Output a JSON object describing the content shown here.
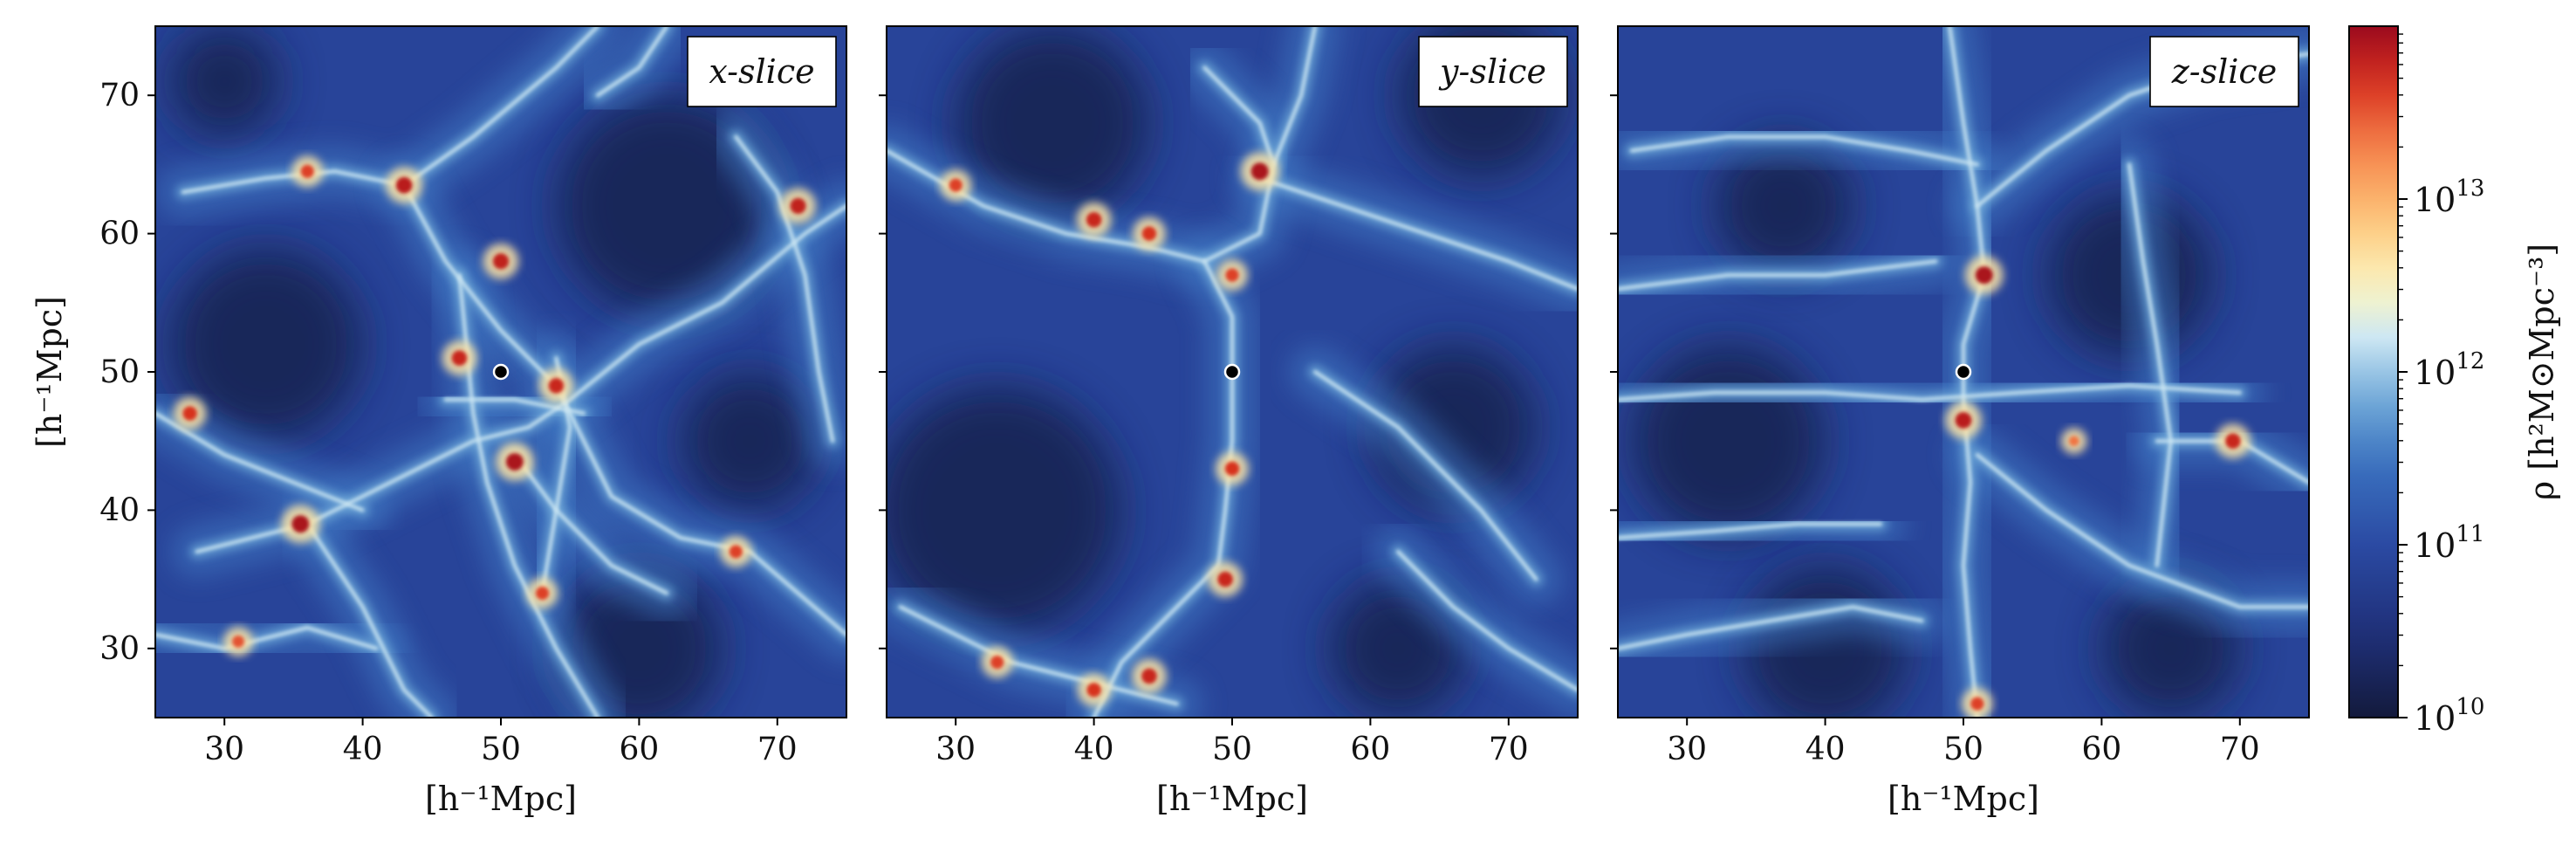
{
  "chart_data": {
    "type": "heatmap",
    "panels": [
      {
        "title": "x-slice",
        "xlabel": "[h⁻¹Mpc]",
        "ylabel": "[h⁻¹Mpc]",
        "xlim": [
          25,
          75
        ],
        "ylim": [
          25,
          75
        ],
        "xticks": [
          "30",
          "40",
          "50",
          "60",
          "70"
        ],
        "yticks": [
          "30",
          "40",
          "50",
          "60",
          "70"
        ],
        "marker": {
          "x": 50,
          "y": 50
        },
        "filaments": [
          [
            [
              27,
              63
            ],
            [
              33,
              64
            ],
            [
              38,
              64.5
            ],
            [
              43,
              63.5
            ],
            [
              48,
              67
            ],
            [
              54,
              72
            ],
            [
              57,
              75
            ]
          ],
          [
            [
              43,
              63.5
            ],
            [
              46,
              58
            ],
            [
              50,
              53
            ],
            [
              54,
              49
            ],
            [
              58,
              41
            ],
            [
              63,
              38
            ],
            [
              68,
              37
            ],
            [
              75,
              31
            ]
          ],
          [
            [
              25,
              31
            ],
            [
              30,
              30
            ],
            [
              36,
              31.5
            ],
            [
              41,
              30
            ]
          ],
          [
            [
              28,
              37
            ],
            [
              32,
              38
            ],
            [
              36,
              39
            ],
            [
              42,
              42
            ],
            [
              48,
              45
            ],
            [
              52,
              46
            ],
            [
              55,
              48
            ],
            [
              60,
              52
            ],
            [
              66,
              55
            ],
            [
              72,
              60
            ],
            [
              75,
              62
            ]
          ],
          [
            [
              36,
              39
            ],
            [
              40,
              33
            ],
            [
              43,
              27
            ],
            [
              45,
              25
            ]
          ],
          [
            [
              47,
              57
            ],
            [
              47.5,
              52
            ],
            [
              48,
              47
            ],
            [
              49,
              42
            ],
            [
              51,
              36
            ],
            [
              54,
              30
            ],
            [
              57,
              25
            ]
          ],
          [
            [
              54,
              51
            ],
            [
              55,
              46
            ],
            [
              54,
              40
            ],
            [
              53,
              34
            ]
          ],
          [
            [
              46,
              48
            ],
            [
              51,
              48
            ],
            [
              56,
              47
            ]
          ],
          [
            [
              51,
              44
            ],
            [
              54,
              40
            ],
            [
              58,
              36
            ],
            [
              62,
              34
            ]
          ],
          [
            [
              67,
              67
            ],
            [
              70,
              63
            ],
            [
              72,
              57
            ],
            [
              73,
              50
            ],
            [
              74,
              45
            ]
          ],
          [
            [
              57,
              70
            ],
            [
              60,
              72
            ],
            [
              62,
              75
            ]
          ],
          [
            [
              25,
              47
            ],
            [
              30,
              44
            ],
            [
              35,
              42
            ],
            [
              40,
              40
            ]
          ]
        ],
        "hotspots": [
          {
            "x": 35.5,
            "y": 39,
            "v": 1.0
          },
          {
            "x": 51,
            "y": 43.5,
            "v": 1.0
          },
          {
            "x": 43,
            "y": 63.5,
            "v": 0.9
          },
          {
            "x": 50,
            "y": 58,
            "v": 0.85
          },
          {
            "x": 47,
            "y": 51,
            "v": 0.8
          },
          {
            "x": 54,
            "y": 49,
            "v": 0.8
          },
          {
            "x": 71.5,
            "y": 62,
            "v": 0.85
          },
          {
            "x": 36,
            "y": 64.5,
            "v": 0.6
          },
          {
            "x": 27.5,
            "y": 47,
            "v": 0.7
          },
          {
            "x": 53,
            "y": 34,
            "v": 0.6
          },
          {
            "x": 67,
            "y": 37,
            "v": 0.6
          },
          {
            "x": 31,
            "y": 30.5,
            "v": 0.5
          }
        ],
        "voids": [
          {
            "x": 33,
            "y": 52,
            "r": 7
          },
          {
            "x": 62,
            "y": 62,
            "r": 8
          },
          {
            "x": 60,
            "y": 30,
            "r": 6
          },
          {
            "x": 68,
            "y": 45,
            "r": 5
          },
          {
            "x": 30,
            "y": 71,
            "r": 4
          }
        ]
      },
      {
        "title": "y-slice",
        "xlabel": "[h⁻¹Mpc]",
        "ylabel": "",
        "xlim": [
          25,
          75
        ],
        "ylim": [
          25,
          75
        ],
        "xticks": [
          "30",
          "40",
          "50",
          "60",
          "70"
        ],
        "yticks": [],
        "marker": {
          "x": 50,
          "y": 50
        },
        "filaments": [
          [
            [
              25,
              66
            ],
            [
              32,
              62
            ],
            [
              38,
              60
            ],
            [
              44,
              59
            ],
            [
              48,
              58
            ],
            [
              52,
              60
            ],
            [
              53,
              65
            ],
            [
              55,
              70
            ],
            [
              56,
              75
            ]
          ],
          [
            [
              48,
              58
            ],
            [
              50,
              54
            ],
            [
              50,
              50
            ],
            [
              50,
              45
            ],
            [
              49.5,
              40
            ],
            [
              49,
              36
            ],
            [
              46,
              33
            ],
            [
              42,
              29
            ],
            [
              40,
              25
            ]
          ],
          [
            [
              53,
              65
            ],
            [
              52,
              68
            ],
            [
              50,
              70
            ],
            [
              48,
              72
            ]
          ],
          [
            [
              26,
              33
            ],
            [
              30,
              31
            ],
            [
              34,
              29
            ],
            [
              38,
              28
            ],
            [
              42,
              27
            ],
            [
              46,
              26
            ]
          ],
          [
            [
              52,
              64
            ],
            [
              58,
              62
            ],
            [
              64,
              60
            ],
            [
              70,
              58
            ],
            [
              75,
              56
            ]
          ],
          [
            [
              56,
              50
            ],
            [
              62,
              46
            ],
            [
              68,
              40
            ],
            [
              72,
              35
            ]
          ],
          [
            [
              62,
              37
            ],
            [
              66,
              33
            ],
            [
              70,
              30
            ],
            [
              75,
              27
            ]
          ]
        ],
        "hotspots": [
          {
            "x": 52,
            "y": 64.5,
            "v": 1.0
          },
          {
            "x": 40,
            "y": 61,
            "v": 0.8
          },
          {
            "x": 44,
            "y": 60,
            "v": 0.7
          },
          {
            "x": 30,
            "y": 63.5,
            "v": 0.6
          },
          {
            "x": 50,
            "y": 43,
            "v": 0.7
          },
          {
            "x": 49.5,
            "y": 35,
            "v": 0.8
          },
          {
            "x": 44,
            "y": 28,
            "v": 0.8
          },
          {
            "x": 40,
            "y": 27,
            "v": 0.7
          },
          {
            "x": 33,
            "y": 29,
            "v": 0.6
          },
          {
            "x": 50,
            "y": 57,
            "v": 0.6
          }
        ],
        "voids": [
          {
            "x": 37,
            "y": 68,
            "r": 7
          },
          {
            "x": 33,
            "y": 40,
            "r": 9
          },
          {
            "x": 66,
            "y": 46,
            "r": 6
          },
          {
            "x": 62,
            "y": 30,
            "r": 5
          },
          {
            "x": 68,
            "y": 70,
            "r": 6
          }
        ]
      },
      {
        "title": "z-slice",
        "xlabel": "[h⁻¹Mpc]",
        "ylabel": "",
        "xlim": [
          25,
          75
        ],
        "ylim": [
          25,
          75
        ],
        "xticks": [
          "30",
          "40",
          "50",
          "60",
          "70"
        ],
        "yticks": [],
        "marker": {
          "x": 50,
          "y": 50
        },
        "filaments": [
          [
            [
              49,
              75
            ],
            [
              50,
              68
            ],
            [
              51,
              62
            ],
            [
              51.5,
              57
            ],
            [
              50,
              52
            ],
            [
              50,
              48
            ],
            [
              50.5,
              42
            ],
            [
              50,
              36
            ],
            [
              50.5,
              30
            ],
            [
              51,
              25
            ]
          ],
          [
            [
              25,
              48
            ],
            [
              32,
              48.5
            ],
            [
              40,
              48.5
            ],
            [
              47,
              48
            ],
            [
              54,
              48.5
            ],
            [
              62,
              49
            ],
            [
              70,
              48.5
            ]
          ],
          [
            [
              51,
              62
            ],
            [
              56,
              66
            ],
            [
              62,
              70
            ],
            [
              68,
              72
            ],
            [
              75,
              73
            ]
          ],
          [
            [
              26,
              66
            ],
            [
              33,
              67
            ],
            [
              40,
              67
            ],
            [
              46,
              66
            ],
            [
              51,
              65
            ]
          ],
          [
            [
              51,
              44
            ],
            [
              56,
              40
            ],
            [
              62,
              36
            ],
            [
              70,
              33
            ],
            [
              75,
              33
            ]
          ],
          [
            [
              25,
              38
            ],
            [
              32,
              38.5
            ],
            [
              38,
              39
            ],
            [
              44,
              39
            ]
          ],
          [
            [
              62,
              65
            ],
            [
              63,
              58
            ],
            [
              64,
              52
            ],
            [
              65,
              45
            ],
            [
              64,
              36
            ]
          ],
          [
            [
              64,
              45
            ],
            [
              67,
              45
            ],
            [
              70,
              45
            ],
            [
              75,
              42
            ]
          ],
          [
            [
              25,
              56
            ],
            [
              33,
              57
            ],
            [
              40,
              57
            ],
            [
              48,
              58
            ]
          ],
          [
            [
              25,
              30
            ],
            [
              30,
              31
            ],
            [
              36,
              32
            ],
            [
              42,
              33
            ],
            [
              47,
              32
            ]
          ]
        ],
        "hotspots": [
          {
            "x": 51.5,
            "y": 57,
            "v": 1.0
          },
          {
            "x": 50,
            "y": 46.5,
            "v": 0.9
          },
          {
            "x": 69.5,
            "y": 45,
            "v": 0.8
          },
          {
            "x": 51,
            "y": 26,
            "v": 0.6
          },
          {
            "x": 58,
            "y": 45,
            "v": 0.3
          }
        ],
        "voids": [
          {
            "x": 33,
            "y": 45,
            "r": 7
          },
          {
            "x": 62,
            "y": 57,
            "r": 6
          },
          {
            "x": 40,
            "y": 30,
            "r": 6
          },
          {
            "x": 65,
            "y": 30,
            "r": 5
          },
          {
            "x": 37,
            "y": 62,
            "r": 5
          }
        ]
      }
    ],
    "colorbar": {
      "label": "ρ  [h²M⊙Mpc⁻³]",
      "scale": "log",
      "range": [
        10000000000.0,
        100000000000000.0
      ],
      "colormap": "RdYlBu_r",
      "ticks": [
        {
          "exp": 10,
          "label": "10",
          "sup": "10"
        },
        {
          "exp": 11,
          "label": "10",
          "sup": "11"
        },
        {
          "exp": 12,
          "label": "10",
          "sup": "12"
        },
        {
          "exp": 13,
          "label": "10",
          "sup": "13"
        }
      ]
    }
  }
}
